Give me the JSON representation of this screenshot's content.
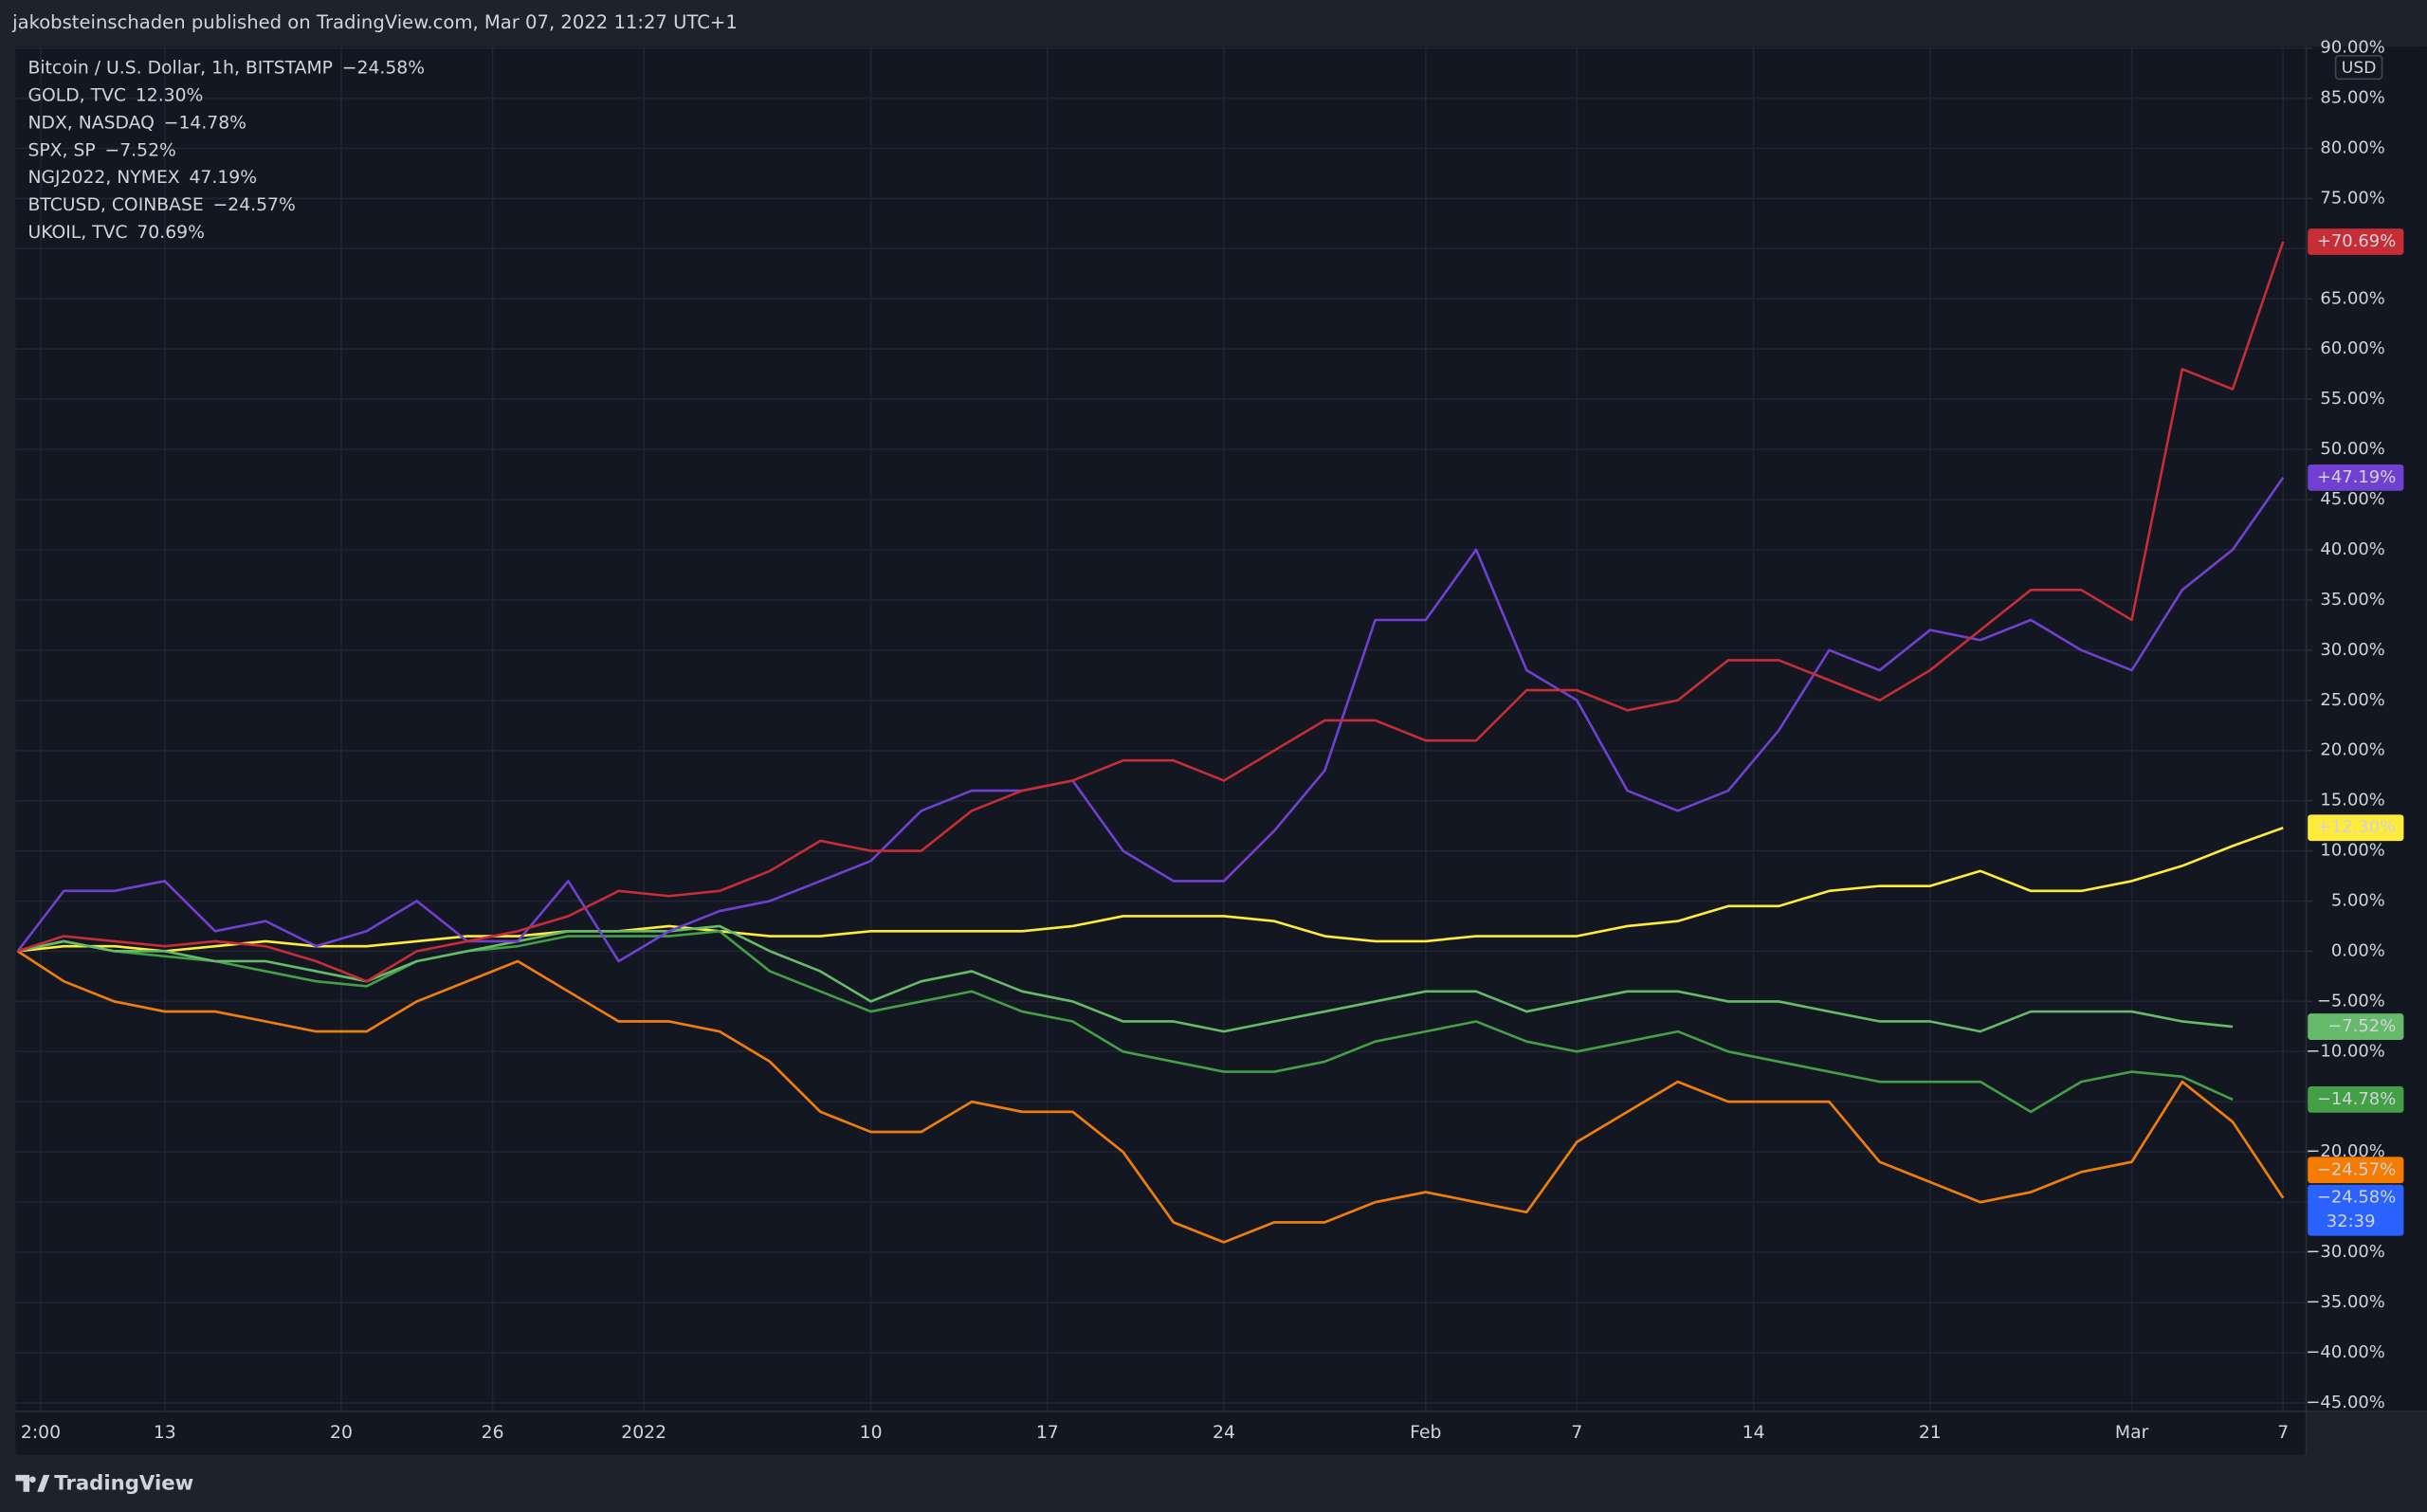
{
  "header": "jakobsteinschaden published on TradingView.com, Mar 07, 2022 11:27 UTC+1",
  "footer": "TradingView",
  "chart_data": {
    "type": "line",
    "axis_unit": "USD",
    "x": [
      "2021-12-07T04:00",
      "2021-12-09T00:00",
      "2021-12-11T00:00",
      "2021-12-13T00:00",
      "2021-12-15T00:00",
      "2021-12-17T00:00",
      "2021-12-19T00:00",
      "2021-12-21T00:00",
      "2021-12-23T00:00",
      "2021-12-25T00:00",
      "2021-12-27T00:00",
      "2021-12-29T00:00",
      "2021-12-31T00:00",
      "2022-01-02T00:00",
      "2022-01-04T00:00",
      "2022-01-06T00:00",
      "2022-01-08T00:00",
      "2022-01-10T00:00",
      "2022-01-12T00:00",
      "2022-01-14T00:00",
      "2022-01-16T00:00",
      "2022-01-18T00:00",
      "2022-01-20T00:00",
      "2022-01-22T00:00",
      "2022-01-24T00:00",
      "2022-01-26T00:00",
      "2022-01-28T00:00",
      "2022-01-30T00:00",
      "2022-02-01T00:00",
      "2022-02-03T00:00",
      "2022-02-05T00:00",
      "2022-02-07T00:00",
      "2022-02-09T00:00",
      "2022-02-11T00:00",
      "2022-02-13T00:00",
      "2022-02-15T00:00",
      "2022-02-17T00:00",
      "2022-02-19T00:00",
      "2022-02-21T00:00",
      "2022-02-23T00:00",
      "2022-02-25T00:00",
      "2022-02-27T00:00",
      "2022-03-01T00:00",
      "2022-03-03T00:00",
      "2022-03-05T00:00",
      "2022-03-07T00:00"
    ],
    "xlim": [
      "2021-12-07T02:00",
      "2022-03-07T22:00"
    ],
    "xticks": [
      {
        "value": "2021-12-08T02:00",
        "label": "2:00"
      },
      {
        "value": "2021-12-13T00:00",
        "label": "13"
      },
      {
        "value": "2021-12-20T00:00",
        "label": "20"
      },
      {
        "value": "2021-12-26T00:00",
        "label": "26"
      },
      {
        "value": "2022-01-01T00:00",
        "label": "2022"
      },
      {
        "value": "2022-01-10T00:00",
        "label": "10"
      },
      {
        "value": "2022-01-17T00:00",
        "label": "17"
      },
      {
        "value": "2022-01-24T00:00",
        "label": "24"
      },
      {
        "value": "2022-02-01T00:00",
        "label": "Feb"
      },
      {
        "value": "2022-02-07T00:00",
        "label": "7"
      },
      {
        "value": "2022-02-14T00:00",
        "label": "14"
      },
      {
        "value": "2022-02-21T00:00",
        "label": "21"
      },
      {
        "value": "2022-03-01T00:00",
        "label": "Mar"
      },
      {
        "value": "2022-03-07T00:00",
        "label": "7"
      }
    ],
    "ylim": [
      -45.85,
      90.15
    ],
    "yticks": [
      {
        "value": 90,
        "label": "90.00%"
      },
      {
        "value": 85,
        "label": "85.00%"
      },
      {
        "value": 80,
        "label": "80.00%"
      },
      {
        "value": 75,
        "label": "75.00%"
      },
      {
        "value": 70,
        "label": "70.00%"
      },
      {
        "value": 65,
        "label": "65.00%"
      },
      {
        "value": 60,
        "label": "60.00%"
      },
      {
        "value": 55,
        "label": "55.00%"
      },
      {
        "value": 50,
        "label": "50.00%"
      },
      {
        "value": 45,
        "label": "45.00%"
      },
      {
        "value": 40,
        "label": "40.00%"
      },
      {
        "value": 35,
        "label": "35.00%"
      },
      {
        "value": 30,
        "label": "30.00%"
      },
      {
        "value": 25,
        "label": "25.00%"
      },
      {
        "value": 20,
        "label": "20.00%"
      },
      {
        "value": 15,
        "label": "15.00%"
      },
      {
        "value": 10,
        "label": "10.00%"
      },
      {
        "value": 5,
        "label": "5.00%"
      },
      {
        "value": 0,
        "label": "0.00%"
      },
      {
        "value": -5,
        "label": "−5.00%"
      },
      {
        "value": -10,
        "label": "−10.00%"
      },
      {
        "value": -15,
        "label": "−15.00%"
      },
      {
        "value": -20,
        "label": "−20.00%"
      },
      {
        "value": -25,
        "label": "−25.00%"
      },
      {
        "value": -30,
        "label": "−30.00%"
      },
      {
        "value": -35,
        "label": "−35.00%"
      },
      {
        "value": -40,
        "label": "−40.00%"
      },
      {
        "value": -45,
        "label": "−45.00%"
      }
    ],
    "grid": true,
    "series": [
      {
        "name": "Bitcoin / U.S. Dollar, 1h, BITSTAMP",
        "color": "#2962ff",
        "legend_label": "−24.58%",
        "badge_label": "−24.58%",
        "countdown": "32:39",
        "values": [
          0,
          -3,
          -5,
          -6,
          -6,
          -7,
          -8,
          -8,
          -5,
          -3,
          -1,
          -4,
          -7,
          -7,
          -8,
          -11,
          -16,
          -18,
          -18,
          -15,
          -16,
          -16,
          -20,
          -27,
          -29,
          -27,
          -27,
          -25,
          -24,
          -25,
          -26,
          -19,
          -16,
          -13,
          -15,
          -15,
          -15,
          -21,
          -23,
          -25,
          -24,
          -22,
          -21,
          -13,
          -17,
          -24.58
        ]
      },
      {
        "name": "GOLD, TVC",
        "color": "#ffeb3b",
        "legend_label": "12.30%",
        "badge_label": "+12.30%",
        "values": [
          0,
          0.5,
          0.5,
          0,
          0.5,
          1,
          0.5,
          0.5,
          1,
          1.5,
          1.5,
          2,
          2,
          2.5,
          2,
          1.5,
          1.5,
          2,
          2,
          2,
          2,
          2.5,
          3.5,
          3.5,
          3.5,
          3,
          1.5,
          1,
          1,
          1.5,
          1.5,
          1.5,
          2.5,
          3,
          4.5,
          4.5,
          6,
          6.5,
          6.5,
          8,
          6,
          6,
          7,
          8.5,
          10.5,
          12.3
        ]
      },
      {
        "name": "NDX, NASDAQ",
        "color": "#43a047",
        "legend_label": "−14.78%",
        "badge_label": "−14.78%",
        "values": [
          0,
          1,
          0,
          -0.5,
          -1,
          -2,
          -3,
          -3.5,
          -1,
          0,
          0.5,
          1.5,
          1.5,
          1.5,
          2,
          -2,
          -4,
          -6,
          -5,
          -4,
          -6,
          -7,
          -10,
          -11,
          -12,
          -12,
          -11,
          -9,
          -8,
          -7,
          -9,
          -10,
          -9,
          -8,
          -10,
          -11,
          -12,
          -13,
          -13,
          -13,
          -16,
          -13,
          -12,
          -12.5,
          -14.78,
          null
        ]
      },
      {
        "name": "SPX, SP",
        "color": "#66bb6a",
        "legend_label": "−7.52%",
        "badge_label": "−7.52%",
        "values": [
          0,
          1,
          0,
          0,
          -1,
          -1,
          -2,
          -3,
          -1,
          0,
          1,
          2,
          2,
          2,
          2.5,
          0,
          -2,
          -5,
          -3,
          -2,
          -4,
          -5,
          -7,
          -7,
          -8,
          -7,
          -6,
          -5,
          -4,
          -4,
          -6,
          -5,
          -4,
          -4,
          -5,
          -5,
          -6,
          -7,
          -7,
          -8,
          -6,
          -6,
          -6,
          -7,
          -7.52,
          null
        ]
      },
      {
        "name": "NGJ2022, NYMEX",
        "color": "#7040d0",
        "legend_label": "47.19%",
        "badge_label": "+47.19%",
        "values": [
          0,
          6,
          6,
          7,
          2,
          3,
          0.5,
          2,
          5,
          1,
          1,
          7,
          -1,
          2,
          4,
          5,
          7,
          9,
          14,
          16,
          16,
          17,
          10,
          7,
          7,
          12,
          18,
          33,
          33,
          40,
          28,
          25,
          16,
          14,
          16,
          22,
          30,
          28,
          32,
          31,
          33,
          30,
          28,
          36,
          40,
          47.19
        ]
      },
      {
        "name": "BTCUSD, COINBASE",
        "color": "#f57c00",
        "legend_label": "−24.57%",
        "badge_label": "−24.57%",
        "values": [
          0,
          -3,
          -5,
          -6,
          -6,
          -7,
          -8,
          -8,
          -5,
          -3,
          -1,
          -4,
          -7,
          -7,
          -8,
          -11,
          -16,
          -18,
          -18,
          -15,
          -16,
          -16,
          -20,
          -27,
          -29,
          -27,
          -27,
          -25,
          -24,
          -25,
          -26,
          -19,
          -16,
          -13,
          -15,
          -15,
          -15,
          -21,
          -23,
          -25,
          -24,
          -22,
          -21,
          -13,
          -17,
          -24.57
        ]
      },
      {
        "name": "UKOIL, TVC",
        "color": "#c62d35",
        "legend_label": "70.69%",
        "badge_label": "+70.69%",
        "values": [
          0,
          1.5,
          1,
          0.5,
          1,
          0.5,
          -1,
          -3,
          0,
          1,
          2,
          3.5,
          6,
          5.5,
          6,
          8,
          11,
          10,
          10,
          14,
          16,
          17,
          19,
          19,
          17,
          20,
          23,
          23,
          21,
          21,
          26,
          26,
          24,
          25,
          29,
          29,
          27,
          25,
          28,
          32,
          36,
          36,
          33,
          58,
          56,
          70.69
        ]
      }
    ]
  }
}
